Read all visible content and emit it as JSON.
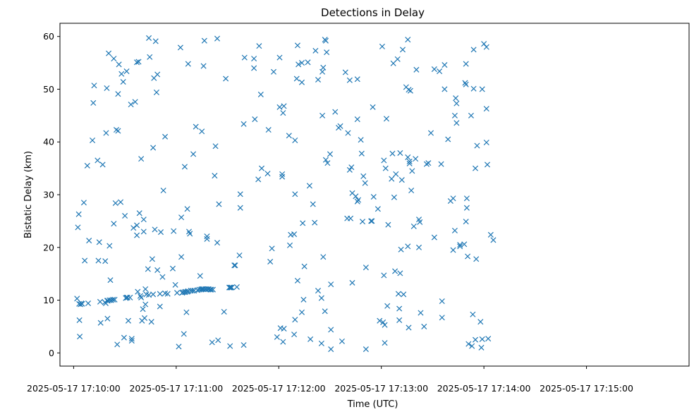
{
  "chart_data": {
    "type": "scatter",
    "title": "Detections in Delay",
    "xlabel": "Time (UTC)",
    "ylabel": "Bistatic Delay (km)",
    "marker": "x",
    "marker_color": "#1f77b4",
    "grid": false,
    "legend": "none",
    "x_unit": "seconds after 2025-05-17 17:10:00 UTC",
    "xlim": [
      -8,
      360
    ],
    "ylim": [
      -2.5,
      62.5
    ],
    "x_ticks": [
      {
        "value": 0,
        "label": "2025-05-17 17:10:00"
      },
      {
        "value": 60,
        "label": "2025-05-17 17:11:00"
      },
      {
        "value": 120,
        "label": "2025-05-17 17:12:00"
      },
      {
        "value": 180,
        "label": "2025-05-17 17:13:00"
      },
      {
        "value": 240,
        "label": "2025-05-17 17:14:00"
      },
      {
        "value": 300,
        "label": "2025-05-17 17:15:00"
      }
    ],
    "y_ticks": [
      {
        "value": 0,
        "label": "0"
      },
      {
        "value": 10,
        "label": "10"
      },
      {
        "value": 20,
        "label": "20"
      },
      {
        "value": 30,
        "label": "30"
      },
      {
        "value": 40,
        "label": "40"
      },
      {
        "value": 50,
        "label": "50"
      },
      {
        "value": 60,
        "label": "60"
      }
    ],
    "points": [
      [
        2,
        10.3
      ],
      [
        2.5,
        23.8
      ],
      [
        3,
        26.3
      ],
      [
        3.2,
        9.3
      ],
      [
        3.4,
        6.2
      ],
      [
        3.6,
        3.1
      ],
      [
        4,
        9.2
      ],
      [
        4.5,
        9.4
      ],
      [
        5,
        9.3
      ],
      [
        6,
        28.5
      ],
      [
        6.5,
        17.5
      ],
      [
        8,
        35.5
      ],
      [
        8.5,
        9.4
      ],
      [
        9,
        21.3
      ],
      [
        11,
        40.3
      ],
      [
        11.5,
        47.4
      ],
      [
        12,
        50.7
      ],
      [
        14,
        36.5
      ],
      [
        14.5,
        17.5
      ],
      [
        15,
        21
      ],
      [
        15.5,
        9.7
      ],
      [
        15.8,
        5.7
      ],
      [
        17,
        35.7
      ],
      [
        18.3,
        9.6
      ],
      [
        18.5,
        17.4
      ],
      [
        18.8,
        9.4
      ],
      [
        19,
        41.7
      ],
      [
        19.4,
        50.2
      ],
      [
        19.6,
        9.9
      ],
      [
        19.8,
        6.5
      ],
      [
        20,
        9.9
      ],
      [
        20.5,
        56.8
      ],
      [
        21,
        10
      ],
      [
        21,
        20.3
      ],
      [
        21.5,
        13.8
      ],
      [
        22,
        10
      ],
      [
        23,
        10.1
      ],
      [
        23.5,
        55.8
      ],
      [
        23.5,
        24.5
      ],
      [
        24,
        10.1
      ],
      [
        24.5,
        28.4
      ],
      [
        25,
        42.3
      ],
      [
        25.5,
        1.6
      ],
      [
        26,
        49.1
      ],
      [
        26,
        42.1
      ],
      [
        26.5,
        54.7
      ],
      [
        27.5,
        28.6
      ],
      [
        28,
        52.9
      ],
      [
        29,
        51.4
      ],
      [
        29.5,
        2.9
      ],
      [
        30,
        26
      ],
      [
        30.5,
        10.4
      ],
      [
        31,
        53.4
      ],
      [
        31,
        10.5
      ],
      [
        31.5,
        10.5
      ],
      [
        32,
        6.1
      ],
      [
        33,
        10.5
      ],
      [
        33.5,
        47.1
      ],
      [
        34,
        2.7
      ],
      [
        34,
        2.3
      ],
      [
        35,
        23.7
      ],
      [
        36,
        47.6
      ],
      [
        37,
        55.1
      ],
      [
        37,
        24.2
      ],
      [
        37,
        22.3
      ],
      [
        37.5,
        11.6
      ],
      [
        38,
        55.2
      ],
      [
        38.5,
        26.5
      ],
      [
        39,
        10.8
      ],
      [
        39.5,
        36.8
      ],
      [
        39.5,
        10.5
      ],
      [
        40,
        6.1
      ],
      [
        40.5,
        8.3
      ],
      [
        41,
        25.3
      ],
      [
        41,
        23
      ],
      [
        41.5,
        6.6
      ],
      [
        42,
        9.2
      ],
      [
        42,
        12.1
      ],
      [
        42.5,
        11.1
      ],
      [
        43.5,
        15.9
      ],
      [
        44,
        59.7
      ],
      [
        44,
        11
      ],
      [
        44.5,
        56.1
      ],
      [
        45.5,
        5.9
      ],
      [
        46,
        17.8
      ],
      [
        46.5,
        38.9
      ],
      [
        46.5,
        11.1
      ],
      [
        47,
        52.1
      ],
      [
        47.5,
        23.4
      ],
      [
        48,
        59.1
      ],
      [
        48.5,
        49.4
      ],
      [
        49,
        52.8
      ],
      [
        49,
        15.7
      ],
      [
        50.5,
        8.8
      ],
      [
        50.5,
        11.2
      ],
      [
        51,
        22.9
      ],
      [
        52,
        14.4
      ],
      [
        52.5,
        30.8
      ],
      [
        53.5,
        41
      ],
      [
        53.5,
        11.3
      ],
      [
        55,
        11.2
      ],
      [
        58,
        16
      ],
      [
        58.5,
        23.1
      ],
      [
        59.5,
        12.9
      ],
      [
        60.5,
        11.4
      ],
      [
        61.5,
        1.2
      ],
      [
        62.5,
        57.9
      ],
      [
        63,
        25.7
      ],
      [
        63,
        18.2
      ],
      [
        63.5,
        11.4
      ],
      [
        64,
        11.5
      ],
      [
        64.5,
        3.6
      ],
      [
        65,
        11.5
      ],
      [
        65,
        35.3
      ],
      [
        65.5,
        11.6
      ],
      [
        66,
        7.7
      ],
      [
        66.5,
        11.6
      ],
      [
        66.5,
        27.3
      ],
      [
        67,
        11.7
      ],
      [
        67,
        54.8
      ],
      [
        67.5,
        23
      ],
      [
        68,
        22.6
      ],
      [
        68.5,
        11.8
      ],
      [
        69.5,
        11.8
      ],
      [
        70,
        37.7
      ],
      [
        70.5,
        11.8
      ],
      [
        71.5,
        42.9
      ],
      [
        72.5,
        11.9
      ],
      [
        73.5,
        12
      ],
      [
        74,
        14.6
      ],
      [
        74.5,
        12
      ],
      [
        75,
        42
      ],
      [
        75,
        12.1
      ],
      [
        75.5,
        12.1
      ],
      [
        76,
        54.4
      ],
      [
        76,
        12.1
      ],
      [
        76.5,
        59.2
      ],
      [
        77,
        12.1
      ],
      [
        77.5,
        12.1
      ],
      [
        78,
        22.1
      ],
      [
        78,
        21.6
      ],
      [
        78.5,
        12.1
      ],
      [
        79,
        12.1
      ],
      [
        80,
        12
      ],
      [
        80.5,
        12
      ],
      [
        81,
        2
      ],
      [
        81.5,
        12
      ],
      [
        82.5,
        33.6
      ],
      [
        83,
        39.2
      ],
      [
        84,
        59.6
      ],
      [
        84,
        20.9
      ],
      [
        84.5,
        2.4
      ],
      [
        85,
        28.2
      ],
      [
        88,
        7.8
      ],
      [
        89,
        52
      ],
      [
        91,
        12.4
      ],
      [
        91.5,
        1.3
      ],
      [
        91.5,
        12.4
      ],
      [
        92,
        12.4
      ],
      [
        92.5,
        12.4
      ],
      [
        94,
        16.6
      ],
      [
        94.5,
        16.6
      ],
      [
        95.5,
        12.5
      ],
      [
        97,
        18.5
      ],
      [
        97.5,
        30.1
      ],
      [
        97.5,
        27.5
      ],
      [
        99.5,
        43.4
      ],
      [
        99.5,
        1.5
      ],
      [
        100,
        56
      ],
      [
        105.5,
        54
      ],
      [
        105.5,
        55.8
      ],
      [
        106,
        44.3
      ],
      [
        108,
        32.9
      ],
      [
        108.5,
        58.2
      ],
      [
        109.5,
        49
      ],
      [
        110,
        35
      ],
      [
        113.5,
        34
      ],
      [
        114,
        42.3
      ],
      [
        115,
        17.3
      ],
      [
        116,
        19.8
      ],
      [
        117,
        53.3
      ],
      [
        119,
        3
      ],
      [
        120.5,
        56
      ],
      [
        120.5,
        46.6
      ],
      [
        121,
        4.7
      ],
      [
        122,
        33.9
      ],
      [
        122,
        33.4
      ],
      [
        122.5,
        45.5
      ],
      [
        122.5,
        2.1
      ],
      [
        123,
        46.8
      ],
      [
        123,
        4.6
      ],
      [
        126,
        41.2
      ],
      [
        126.5,
        20.4
      ],
      [
        127,
        22.4
      ],
      [
        129,
        22.5
      ],
      [
        129,
        3.5
      ],
      [
        129.5,
        6.3
      ],
      [
        129.5,
        40.3
      ],
      [
        129.5,
        30.1
      ],
      [
        130.5,
        52
      ],
      [
        131,
        13.7
      ],
      [
        131,
        58.3
      ],
      [
        131.5,
        54.7
      ],
      [
        133.5,
        55
      ],
      [
        133.5,
        51.3
      ],
      [
        133.5,
        7.7
      ],
      [
        134,
        24.6
      ],
      [
        134.5,
        10.1
      ],
      [
        135,
        16.4
      ],
      [
        137,
        55.1
      ],
      [
        138,
        31.7
      ],
      [
        138.5,
        2.6
      ],
      [
        140,
        28.2
      ],
      [
        141,
        24.7
      ],
      [
        141.5,
        57.3
      ],
      [
        143,
        11.8
      ],
      [
        143,
        51.8
      ],
      [
        145,
        1.8
      ],
      [
        145,
        10.4
      ],
      [
        145.5,
        53.3
      ],
      [
        145.5,
        45
      ],
      [
        146,
        54.1
      ],
      [
        146,
        18.2
      ],
      [
        147,
        7.9
      ],
      [
        147,
        59.4
      ],
      [
        147.5,
        59.2
      ],
      [
        147.5,
        36.6
      ],
      [
        148,
        57
      ],
      [
        148.5,
        36
      ],
      [
        150,
        37.7
      ],
      [
        150.5,
        13
      ],
      [
        150.5,
        4.4
      ],
      [
        150.5,
        0.7
      ],
      [
        153,
        45.7
      ],
      [
        155,
        42.7
      ],
      [
        156,
        43
      ],
      [
        157,
        2.2
      ],
      [
        159,
        53.2
      ],
      [
        160,
        25.5
      ],
      [
        160.5,
        41.7
      ],
      [
        161.5,
        51.7
      ],
      [
        161.5,
        34.7
      ],
      [
        162,
        25.5
      ],
      [
        162.5,
        35.2
      ],
      [
        163,
        13.3
      ],
      [
        163,
        30.3
      ],
      [
        165,
        29.7
      ],
      [
        166,
        44.3
      ],
      [
        166,
        28.7
      ],
      [
        166,
        51.9
      ],
      [
        166.5,
        29
      ],
      [
        168,
        40.4
      ],
      [
        168.5,
        37.8
      ],
      [
        169,
        24.9
      ],
      [
        169.5,
        33.5
      ],
      [
        170.5,
        32.2
      ],
      [
        171,
        0.7
      ],
      [
        171,
        16.2
      ],
      [
        174,
        25
      ],
      [
        174.5,
        25
      ],
      [
        175,
        46.6
      ],
      [
        175.5,
        29.6
      ],
      [
        178,
        27.3
      ],
      [
        179,
        6.1
      ],
      [
        180.5,
        58.1
      ],
      [
        181,
        5.8
      ],
      [
        181.5,
        36.5
      ],
      [
        181.5,
        14.7
      ],
      [
        182,
        1.9
      ],
      [
        182,
        5.3
      ],
      [
        182.5,
        35
      ],
      [
        183,
        44.4
      ],
      [
        183.5,
        8.9
      ],
      [
        184,
        24.3
      ],
      [
        186,
        33
      ],
      [
        186.5,
        37.8
      ],
      [
        187,
        54.9
      ],
      [
        187.5,
        29.5
      ],
      [
        188,
        15.5
      ],
      [
        188.5,
        33.9
      ],
      [
        189.5,
        55.7
      ],
      [
        190,
        11.2
      ],
      [
        190.5,
        6.2
      ],
      [
        190.5,
        8.4
      ],
      [
        191,
        37.9
      ],
      [
        191,
        15.1
      ],
      [
        191.5,
        19.6
      ],
      [
        192,
        32.8
      ],
      [
        192.5,
        57.5
      ],
      [
        193,
        11.1
      ],
      [
        194.5,
        50.4
      ],
      [
        195.5,
        37.1
      ],
      [
        195.5,
        59.4
      ],
      [
        195.5,
        20.2
      ],
      [
        196,
        4.8
      ],
      [
        196,
        49.9
      ],
      [
        196.5,
        35.9
      ],
      [
        196.5,
        36.3
      ],
      [
        197,
        49.7
      ],
      [
        197.5,
        30.8
      ],
      [
        198,
        34.5
      ],
      [
        199,
        24
      ],
      [
        200,
        36.8
      ],
      [
        200.5,
        53.7
      ],
      [
        202,
        20
      ],
      [
        202,
        25.3
      ],
      [
        202.5,
        24.8
      ],
      [
        203,
        7.6
      ],
      [
        205,
        5
      ],
      [
        206.5,
        35.8
      ],
      [
        207.5,
        36
      ],
      [
        209,
        41.7
      ],
      [
        211,
        21.9
      ],
      [
        211,
        53.8
      ],
      [
        214,
        53.4
      ],
      [
        215,
        35.8
      ],
      [
        215.5,
        9.8
      ],
      [
        215.5,
        6.7
      ],
      [
        217,
        50
      ],
      [
        217,
        54.6
      ],
      [
        219,
        40.5
      ],
      [
        220.5,
        28.8
      ],
      [
        222,
        29.3
      ],
      [
        222,
        19.5
      ],
      [
        223,
        23.2
      ],
      [
        223,
        45
      ],
      [
        223.5,
        48.3
      ],
      [
        224,
        43.6
      ],
      [
        224,
        47.3
      ],
      [
        226,
        20.2
      ],
      [
        226,
        20.5
      ],
      [
        228.5,
        20.6
      ],
      [
        229,
        51.2
      ],
      [
        229.5,
        50.9
      ],
      [
        229.5,
        24.9
      ],
      [
        229.5,
        54.8
      ],
      [
        230,
        27.5
      ],
      [
        230,
        29.3
      ],
      [
        230.5,
        18.3
      ],
      [
        231,
        1.7
      ],
      [
        232.5,
        45
      ],
      [
        233,
        1.3
      ],
      [
        233.5,
        7.3
      ],
      [
        234,
        57.5
      ],
      [
        234,
        50.1
      ],
      [
        235,
        2.5
      ],
      [
        235,
        35
      ],
      [
        235.5,
        17.8
      ],
      [
        236,
        39.3
      ],
      [
        238,
        5.9
      ],
      [
        238.5,
        1
      ],
      [
        239,
        50
      ],
      [
        239,
        2.6
      ],
      [
        240,
        58.6
      ],
      [
        241.5,
        58
      ],
      [
        241.5,
        46.3
      ],
      [
        241.5,
        39.9
      ],
      [
        242,
        35.7
      ],
      [
        242.5,
        2.7
      ],
      [
        244,
        22.4
      ],
      [
        245.5,
        21.4
      ]
    ]
  }
}
